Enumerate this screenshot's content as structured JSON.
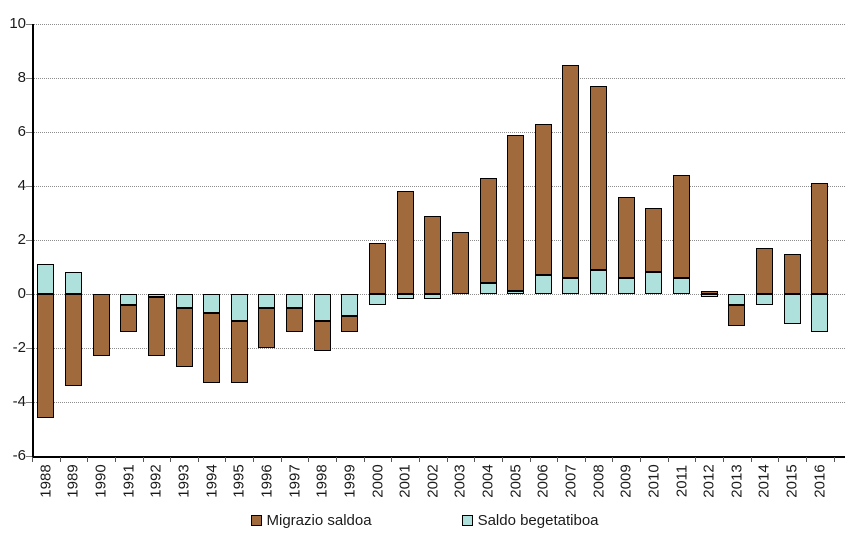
{
  "chart_data": {
    "type": "bar",
    "stacked": true,
    "title": "",
    "xlabel": "",
    "ylabel": "",
    "categories": [
      "1988",
      "1989",
      "1990",
      "1991",
      "1992",
      "1993",
      "1994",
      "1995",
      "1996",
      "1997",
      "1998",
      "1999",
      "2000",
      "2001",
      "2002",
      "2003",
      "2004",
      "2005",
      "2006",
      "2007",
      "2008",
      "2009",
      "2010",
      "2011",
      "2012",
      "2013",
      "2014",
      "2015",
      "2016"
    ],
    "series": [
      {
        "name": "Migrazio saldoa",
        "color": "#A06A3D",
        "values": [
          -4.6,
          -3.4,
          -2.3,
          -1.0,
          -2.2,
          -2.2,
          -2.6,
          -2.3,
          -1.5,
          -0.9,
          -1.1,
          -0.6,
          1.9,
          3.8,
          2.9,
          2.3,
          3.9,
          5.8,
          5.6,
          7.9,
          6.8,
          3.0,
          2.4,
          3.8,
          0.1,
          -0.8,
          1.7,
          1.5,
          4.1
        ]
      },
      {
        "name": "Saldo begetatiboa",
        "color": "#AEE0DC",
        "values": [
          1.1,
          0.8,
          0.0,
          -0.4,
          -0.1,
          -0.5,
          -0.7,
          -1.0,
          -0.5,
          -0.5,
          -1.0,
          -0.8,
          -0.4,
          -0.2,
          -0.2,
          0.0,
          0.4,
          0.1,
          0.7,
          0.6,
          0.9,
          0.6,
          0.8,
          0.6,
          -0.1,
          -0.4,
          -0.4,
          -1.1,
          -1.4
        ]
      }
    ],
    "ylim": [
      -6,
      10
    ],
    "yticks": [
      10,
      8,
      6,
      4,
      2,
      0,
      -2,
      -4,
      -6
    ],
    "grid": "horizontal",
    "legend_position": "bottom",
    "bar_outline_color": "#000000",
    "axis_color": "#000000",
    "background": "#FFFFFF"
  }
}
